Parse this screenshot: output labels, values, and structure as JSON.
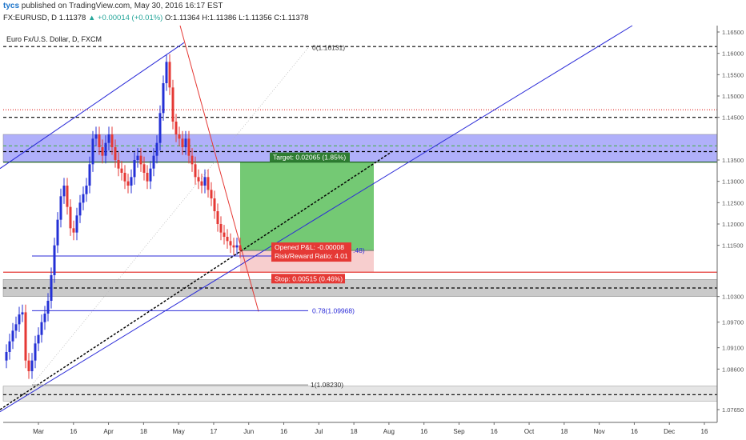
{
  "header": {
    "username": "tycs",
    "published_text": " published on TradingView.com, May 30, 2016 16:17 EST",
    "symbol": "FX:EURUSD, D",
    "last": "1.11378",
    "change": "▲ +0.00014 (+0.01%)",
    "ohlc": "O:1.11364 H:1.11386 L:1.11356 C:1.11378"
  },
  "chart_data": {
    "type": "candlestick",
    "title": "Euro Fx/U.S. Dollar, D, FXCM",
    "ylim": [
      1.0735,
      1.1665
    ],
    "y_ticks": [
      "1.16500",
      "1.16000",
      "1.15500",
      "1.15000",
      "1.14500",
      "1.13500",
      "1.13000",
      "1.12500",
      "1.12000",
      "1.11500",
      "1.10300",
      "1.09700",
      "1.09100",
      "1.08600",
      "1.07650"
    ],
    "x_ticks": [
      "Mar",
      "16",
      "Apr",
      "18",
      "May",
      "17",
      "Jun",
      "16",
      "Jul",
      "18",
      "Aug",
      "16",
      "Sep",
      "16",
      "Oct",
      "18",
      "Nov",
      "16",
      "Dec",
      "16"
    ],
    "close_series": [
      1.09,
      1.0925,
      1.095,
      1.0965,
      1.0988,
      1.0993,
      1.088,
      1.0855,
      1.088,
      1.092,
      1.094,
      1.097,
      1.099,
      1.102,
      1.108,
      1.115,
      1.121,
      1.1265,
      1.129,
      1.124,
      1.119,
      1.118,
      1.122,
      1.125,
      1.127,
      1.129,
      1.134,
      1.14,
      1.141,
      1.138,
      1.136,
      1.139,
      1.141,
      1.138,
      1.135,
      1.133,
      1.132,
      1.13,
      1.129,
      1.131,
      1.135,
      1.136,
      1.134,
      1.132,
      1.13,
      1.133,
      1.136,
      1.139,
      1.146,
      1.153,
      1.158,
      1.152,
      1.144,
      1.141,
      1.14,
      1.138,
      1.14,
      1.136,
      1.134,
      1.131,
      1.13,
      1.129,
      1.131,
      1.128,
      1.126,
      1.123,
      1.12,
      1.118,
      1.117,
      1.116,
      1.115,
      1.1145,
      1.115,
      1.1138
    ],
    "price_levels": [
      {
        "label": "1.16159",
        "value": 1.16159,
        "color": "#000000",
        "style": "dashed"
      },
      {
        "label": "1.14676",
        "value": 1.14676,
        "color": "#e53935",
        "style": "dotted"
      },
      {
        "label": "1.14500",
        "value": 1.145,
        "color": "#000000",
        "style": "dashed"
      },
      {
        "label": "1.13832",
        "value": 1.13832,
        "color": "#4caf50",
        "style": "dashed"
      },
      {
        "label": "1.13697",
        "value": 1.13697,
        "color": "#000000",
        "style": "dashed"
      },
      {
        "label": "1.13451",
        "value": 1.13451,
        "color": "#1b5e20",
        "style": "solid"
      },
      {
        "label": "1.11386",
        "value": 1.11386,
        "color": "#555555",
        "style": "solid"
      },
      {
        "label": "1.11378",
        "value": 1.11378,
        "color": "#1e40ff",
        "style": "solid"
      },
      {
        "label": "1.10871",
        "value": 1.10871,
        "color": "#e53935",
        "style": "solid"
      },
      {
        "label": "1.10500",
        "value": 1.105,
        "color": "#000000",
        "style": "dashed"
      },
      {
        "label": "1.08000",
        "value": 1.08,
        "color": "#000000",
        "style": "dashed"
      }
    ],
    "zones": [
      {
        "from": 1.1345,
        "to": 1.141,
        "color": "#6f6ff5"
      },
      {
        "from": 1.103,
        "to": 1.107,
        "color": "#9e9e9e"
      },
      {
        "from": 1.0785,
        "to": 1.082,
        "color": "#cfcfcf"
      }
    ],
    "fib_labels": [
      {
        "text": "0(1.16131)",
        "value": 1.16131
      },
      {
        "text": "0.78(1.09968)",
        "value": 1.09968
      },
      {
        "text": "1(1.08230)",
        "value": 1.0823
      }
    ],
    "position": {
      "entry": 1.1138,
      "target": 1.1345,
      "stop": 1.1087,
      "target_label": "Target: 0.02065 (1.85%)",
      "pnl_label": "Opened P&L: -0.00008",
      "rr_label": "Risk/Reward Ratio: 4.01",
      "stop_label": "Stop: 0.00515 (0.46%)",
      "hidden_suffix": ".48)"
    },
    "colors": {
      "up": "#2431d6",
      "down": "#e53935",
      "trendline": "#2b2bd8",
      "target_zone": "#5cc05c",
      "stop_zone": "#f6c9c9"
    }
  }
}
